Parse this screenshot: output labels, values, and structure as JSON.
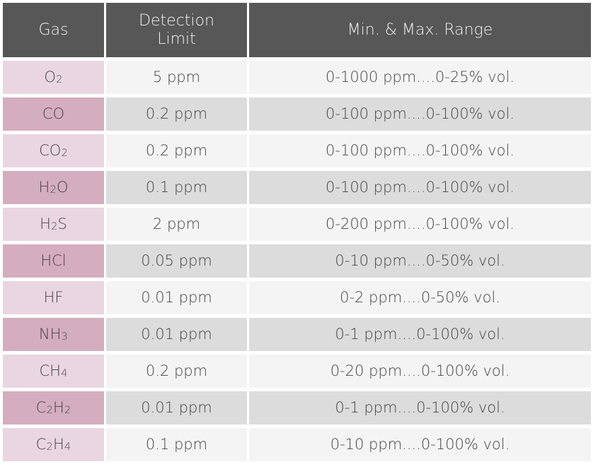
{
  "table": {
    "headers": {
      "gas": "Gas",
      "detection": "Detection\nLimit",
      "range": "Min. & Max. Range"
    },
    "rows": [
      {
        "gas": [
          [
            "O",
            ""
          ],
          [
            "2",
            "sub"
          ]
        ],
        "detection": "5 ppm",
        "range": "0-1000 ppm....0-25% vol."
      },
      {
        "gas": [
          [
            "CO",
            ""
          ]
        ],
        "detection": "0.2 ppm",
        "range": "0-100 ppm....0-100% vol."
      },
      {
        "gas": [
          [
            "CO",
            ""
          ],
          [
            "2",
            "sub"
          ]
        ],
        "detection": "0.2 ppm",
        "range": "0-100 ppm....0-100% vol."
      },
      {
        "gas": [
          [
            "H",
            ""
          ],
          [
            "2",
            "sub"
          ],
          [
            "O",
            ""
          ]
        ],
        "detection": "0.1 ppm",
        "range": "0-100 ppm....0-100% vol."
      },
      {
        "gas": [
          [
            "H",
            ""
          ],
          [
            "2",
            "sub"
          ],
          [
            "S",
            ""
          ]
        ],
        "detection": "2 ppm",
        "range": "0-200 ppm....0-100% vol."
      },
      {
        "gas": [
          [
            "HCl",
            ""
          ]
        ],
        "detection": "0.05 ppm",
        "range": "0-10 ppm....0-50% vol."
      },
      {
        "gas": [
          [
            "HF",
            ""
          ]
        ],
        "detection": "0.01 ppm",
        "range": "0-2 ppm....0-50% vol."
      },
      {
        "gas": [
          [
            "NH",
            ""
          ],
          [
            "3",
            "sub"
          ]
        ],
        "detection": "0.01 ppm",
        "range": "0-1 ppm....0-100% vol."
      },
      {
        "gas": [
          [
            "CH",
            ""
          ],
          [
            "4",
            "sub"
          ]
        ],
        "detection": "0.2 ppm",
        "range": "0-20 ppm....0-100% vol."
      },
      {
        "gas": [
          [
            "C",
            ""
          ],
          [
            "2",
            "sub"
          ],
          [
            "H",
            ""
          ],
          [
            "2",
            "sub"
          ]
        ],
        "detection": "0.01 ppm",
        "range": "0-1 ppm....0-100% vol."
      },
      {
        "gas": [
          [
            "C",
            ""
          ],
          [
            "2",
            "sub"
          ],
          [
            "H",
            ""
          ],
          [
            "4",
            "sub"
          ]
        ],
        "detection": "0.1 ppm",
        "range": "0-10 ppm....0-100% vol."
      }
    ]
  },
  "colors": {
    "header_bg": "#575757",
    "gas_light": "#ead6e0",
    "gas_dark": "#d4adbe",
    "value_light": "#f4f4f4",
    "value_dark": "#dcdcdc"
  }
}
